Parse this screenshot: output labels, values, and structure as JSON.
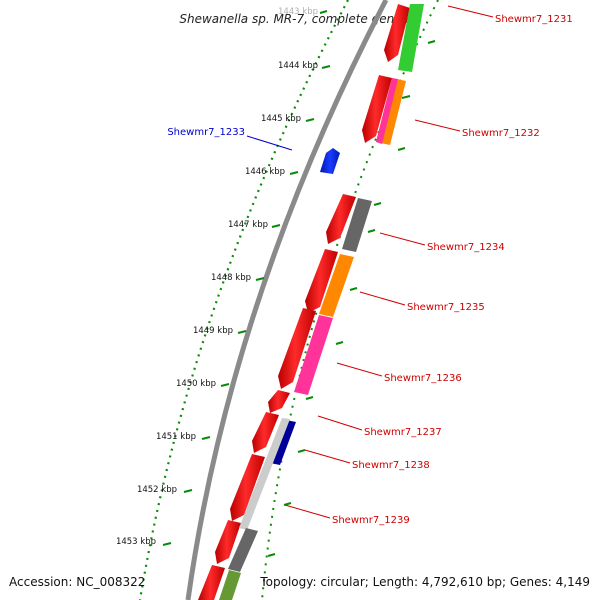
{
  "title": "Shewanella sp. MR-7, complete genome",
  "footer": {
    "accession": "Accession: NC_008322",
    "topology": "Topology: circular; Length: 4,792,610 bp; Genes: 4,149"
  },
  "scale": {
    "ticks": [
      {
        "label": "1443 kbp",
        "faded": true
      },
      {
        "label": "1444 kbp"
      },
      {
        "label": "1445 kbp"
      },
      {
        "label": "1446 kbp"
      },
      {
        "label": "1447 kbp"
      },
      {
        "label": "1448 kbp"
      },
      {
        "label": "1449 kbp"
      },
      {
        "label": "1450 kbp"
      },
      {
        "label": "1451 kbp"
      },
      {
        "label": "1452 kbp"
      },
      {
        "label": "1453 kbp"
      }
    ]
  },
  "genes": [
    {
      "id": "Shewmr7_1231",
      "label": "Shewmr7_1231",
      "color": "#e00000"
    },
    {
      "id": "Shewmr7_1232",
      "label": "Shewmr7_1232",
      "color": "#e00000"
    },
    {
      "id": "Shewmr7_1233",
      "label": "Shewmr7_1233",
      "color": "#0000cc"
    },
    {
      "id": "Shewmr7_1234",
      "label": "Shewmr7_1234",
      "color": "#e00000"
    },
    {
      "id": "Shewmr7_1235",
      "label": "Shewmr7_1235",
      "color": "#e00000"
    },
    {
      "id": "Shewmr7_1236",
      "label": "Shewmr7_1236",
      "color": "#e00000"
    },
    {
      "id": "Shewmr7_1237",
      "label": "Shewmr7_1237",
      "color": "#e00000"
    },
    {
      "id": "Shewmr7_1238",
      "label": "Shewmr7_1238",
      "color": "#e00000"
    },
    {
      "id": "Shewmr7_1239",
      "label": "Shewmr7_1239",
      "color": "#e00000"
    }
  ],
  "colors": {
    "backbone": "#808080",
    "tick": "#008000",
    "strand_red": "#ff0000",
    "cog_green": "#33cc33",
    "cog_magenta": "#ff3399",
    "cog_orange": "#ff8800",
    "cog_dark_gray": "#666666",
    "cog_light_gray": "#c8c8c8",
    "cog_navy": "#000099",
    "cog_olive": "#669933",
    "blue": "#0033ff"
  }
}
